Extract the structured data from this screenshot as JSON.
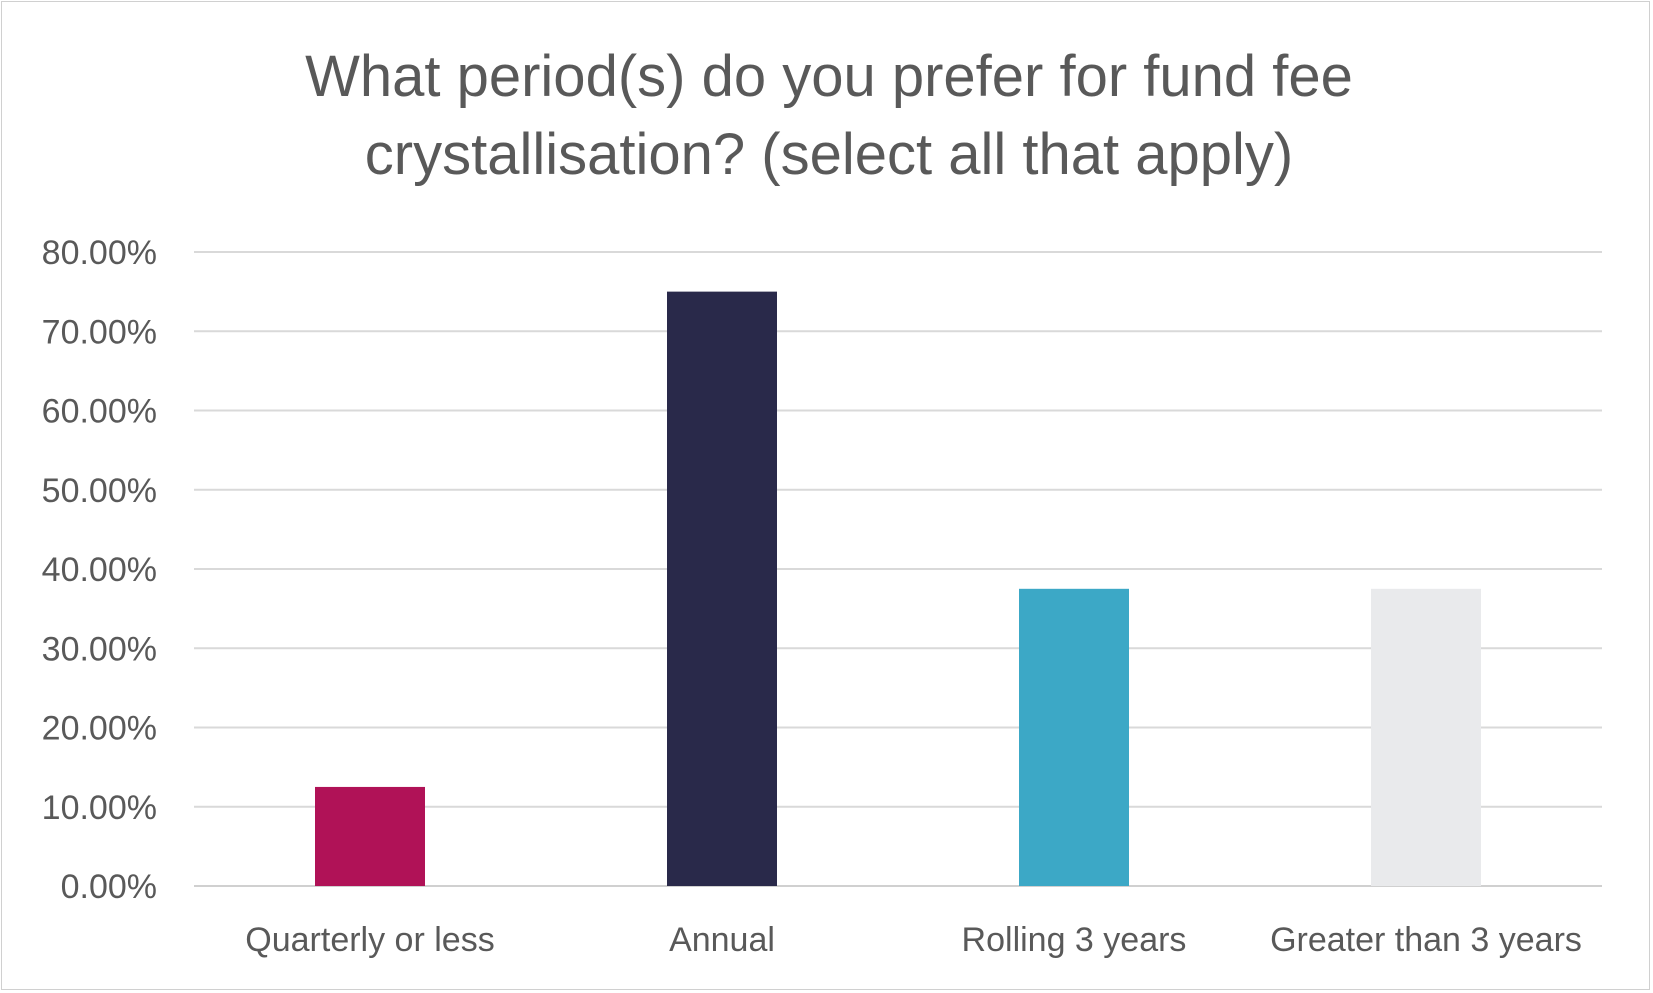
{
  "chart_data": {
    "type": "bar",
    "title_lines": [
      "What period(s) do you prefer for fund fee",
      "crystallisation? (select all that apply)"
    ],
    "categories": [
      "Quarterly or less",
      "Annual",
      "Rolling 3 years",
      "Greater than 3 years"
    ],
    "values": [
      12.5,
      75.0,
      37.5,
      37.5
    ],
    "bar_colors": [
      "#B01257",
      "#29294A",
      "#3CA8C6",
      "#E9EAEC"
    ],
    "y_ticks": [
      "0.00%",
      "10.00%",
      "20.00%",
      "30.00%",
      "40.00%",
      "50.00%",
      "60.00%",
      "70.00%",
      "80.00%"
    ],
    "ylim": [
      0,
      80
    ],
    "y_step": 10,
    "grid": true,
    "gridline_color": "#d9d9d9",
    "xlabel": "",
    "ylabel": "",
    "legend": "none"
  }
}
